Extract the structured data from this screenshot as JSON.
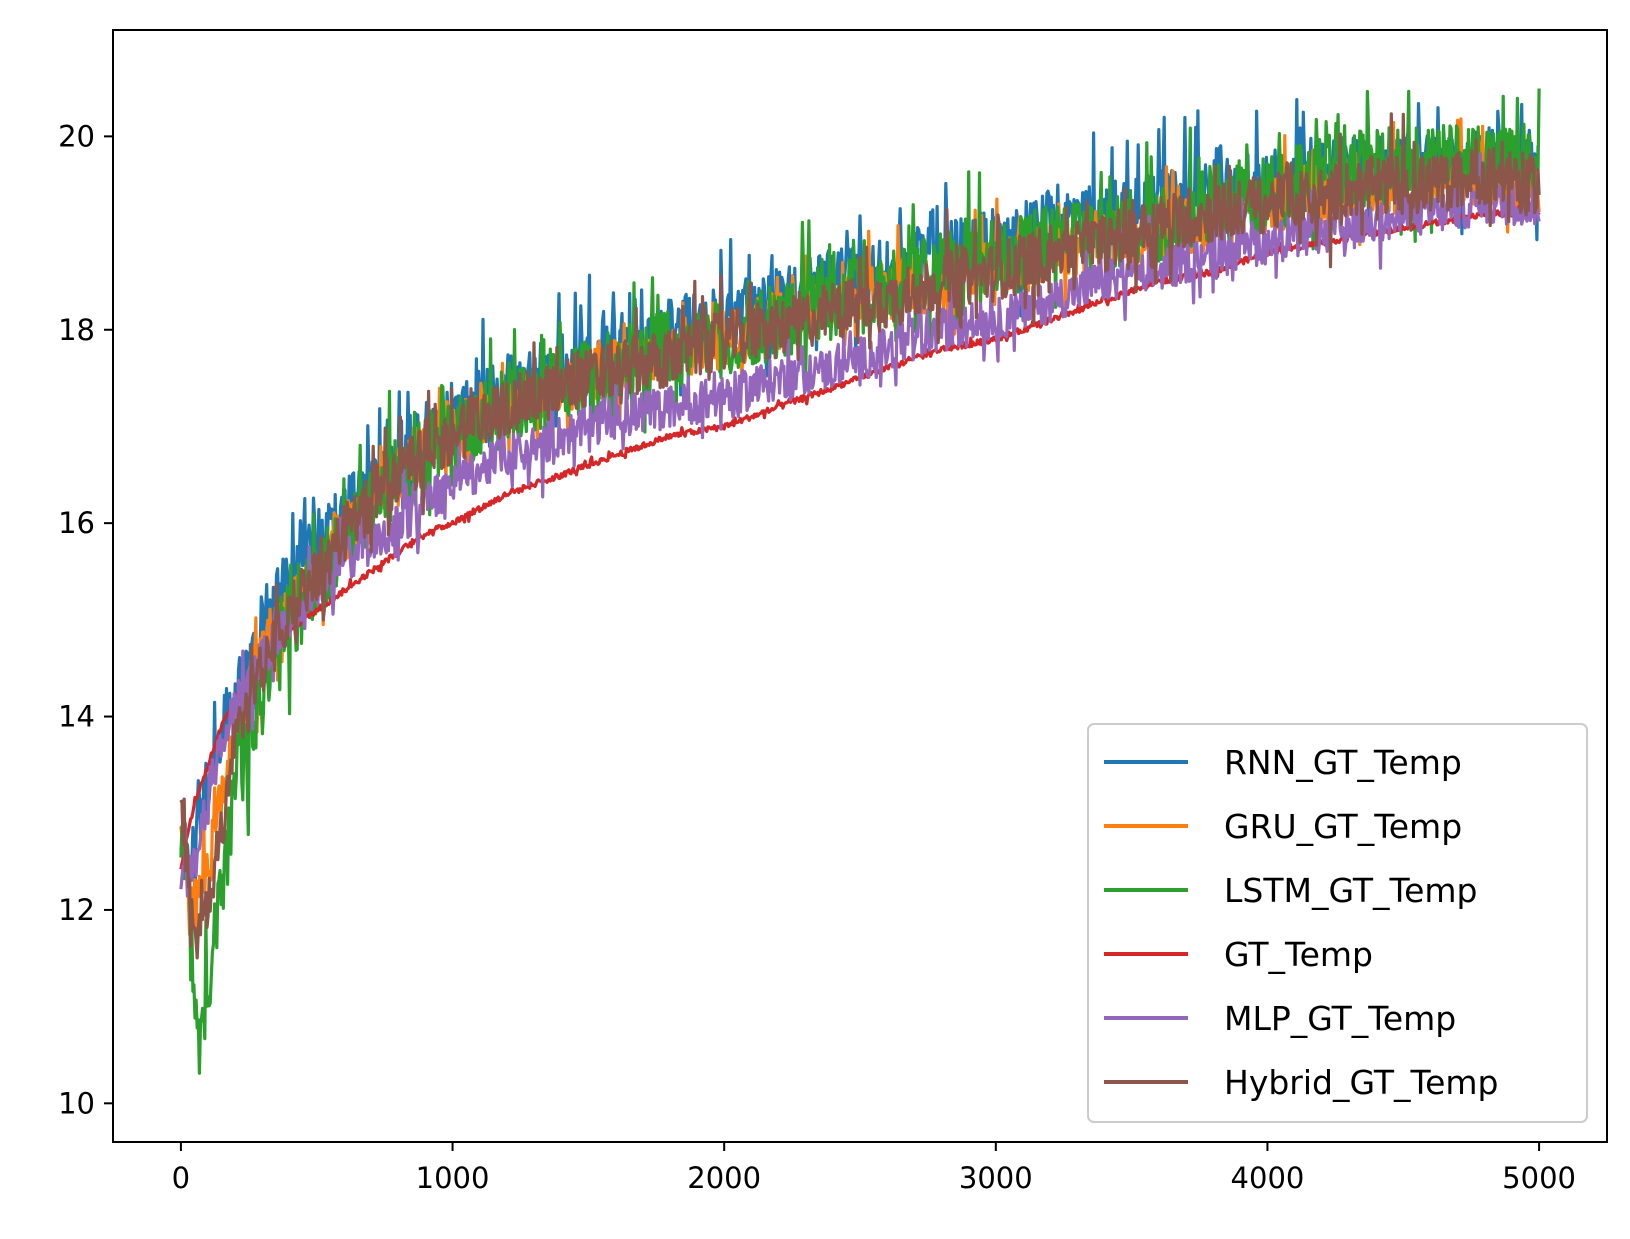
{
  "chart_data": {
    "type": "line",
    "title": "",
    "xlabel": "",
    "ylabel": "",
    "xlim": [
      -250,
      5250
    ],
    "ylim": [
      9.6,
      21.1
    ],
    "x_ticks": [
      0,
      1000,
      2000,
      3000,
      4000,
      5000
    ],
    "x_tick_labels": [
      "0",
      "1000",
      "2000",
      "3000",
      "4000",
      "5000"
    ],
    "y_ticks": [
      10,
      12,
      14,
      16,
      18,
      20
    ],
    "y_tick_labels": [
      "10",
      "12",
      "14",
      "16",
      "18",
      "20"
    ],
    "grid": false,
    "legend_position": "lower-right",
    "x": [
      0,
      25,
      50,
      75,
      100,
      150,
      200,
      300,
      400,
      500,
      600,
      700,
      800,
      900,
      1000,
      1200,
      1400,
      1600,
      1800,
      2000,
      2200,
      2400,
      2600,
      2800,
      3000,
      3200,
      3400,
      3600,
      3800,
      4000,
      4200,
      4400,
      4600,
      4800,
      5000
    ],
    "series": [
      {
        "name": "RNN_GT_Temp",
        "color": "#1f77b4",
        "noise": 0.35,
        "values": [
          12.8,
          12.5,
          12.6,
          13.0,
          13.4,
          13.8,
          14.2,
          14.9,
          15.4,
          15.8,
          16.1,
          16.4,
          16.7,
          16.9,
          17.1,
          17.4,
          17.6,
          17.8,
          18.0,
          18.1,
          18.3,
          18.5,
          18.6,
          18.8,
          18.9,
          19.1,
          19.2,
          19.3,
          19.4,
          19.5,
          19.6,
          19.7,
          19.7,
          19.8,
          19.7
        ]
      },
      {
        "name": "GRU_GT_Temp",
        "color": "#ff7f0e",
        "noise": 0.3,
        "values": [
          12.7,
          12.3,
          12.0,
          12.1,
          12.5,
          13.2,
          13.9,
          14.6,
          15.1,
          15.5,
          15.9,
          16.2,
          16.5,
          16.7,
          16.9,
          17.2,
          17.4,
          17.6,
          17.8,
          17.9,
          18.1,
          18.2,
          18.4,
          18.5,
          18.7,
          18.8,
          18.9,
          19.0,
          19.1,
          19.3,
          19.4,
          19.5,
          19.5,
          19.6,
          19.5
        ]
      },
      {
        "name": "LSTM_GT_Temp",
        "color": "#2ca02c",
        "noise": 0.4,
        "values": [
          12.7,
          12.2,
          10.8,
          10.6,
          11.2,
          12.2,
          13.2,
          14.2,
          14.9,
          15.4,
          15.8,
          16.2,
          16.5,
          16.7,
          16.9,
          17.2,
          17.4,
          17.6,
          17.8,
          17.9,
          18.1,
          18.3,
          18.4,
          18.6,
          18.7,
          18.9,
          19.0,
          19.1,
          19.3,
          19.4,
          19.6,
          19.7,
          19.7,
          19.8,
          19.6
        ]
      },
      {
        "name": "GT_Temp",
        "color": "#d62728",
        "noise": 0.03,
        "values": [
          12.4,
          12.8,
          13.1,
          13.3,
          13.5,
          13.9,
          14.2,
          14.6,
          14.9,
          15.1,
          15.3,
          15.5,
          15.7,
          15.9,
          16.0,
          16.3,
          16.5,
          16.7,
          16.9,
          17.0,
          17.2,
          17.4,
          17.6,
          17.8,
          17.9,
          18.1,
          18.3,
          18.5,
          18.6,
          18.8,
          18.9,
          19.0,
          19.1,
          19.2,
          19.2
        ]
      },
      {
        "name": "MLP_GT_Temp",
        "color": "#9467bd",
        "noise": 0.22,
        "values": [
          12.6,
          12.3,
          12.5,
          12.8,
          13.2,
          13.7,
          14.1,
          14.6,
          15.0,
          15.3,
          15.6,
          15.8,
          16.0,
          16.2,
          16.4,
          16.7,
          16.9,
          17.1,
          17.2,
          17.3,
          17.5,
          17.6,
          17.8,
          18.0,
          18.1,
          18.3,
          18.5,
          18.6,
          18.8,
          18.9,
          19.0,
          19.1,
          19.2,
          19.3,
          19.3
        ]
      },
      {
        "name": "Hybrid_GT_Temp",
        "color": "#8c564b",
        "noise": 0.3,
        "values": [
          12.9,
          12.4,
          11.8,
          11.7,
          12.0,
          12.9,
          13.7,
          14.5,
          15.1,
          15.5,
          15.9,
          16.2,
          16.5,
          16.7,
          16.9,
          17.2,
          17.4,
          17.6,
          17.7,
          17.9,
          18.0,
          18.2,
          18.3,
          18.5,
          18.6,
          18.8,
          18.9,
          19.1,
          19.2,
          19.3,
          19.4,
          19.5,
          19.5,
          19.6,
          19.5
        ]
      }
    ]
  }
}
